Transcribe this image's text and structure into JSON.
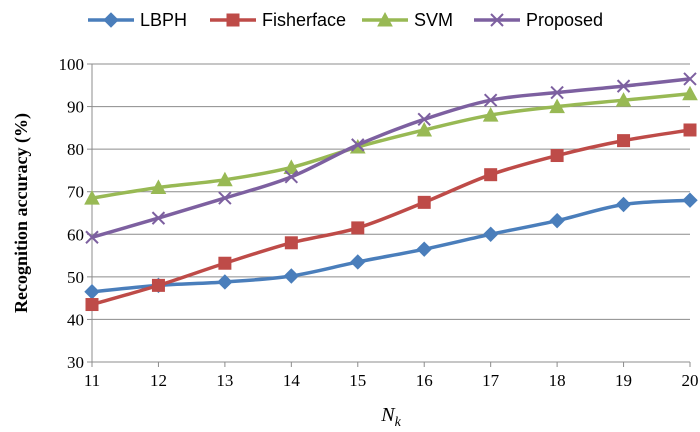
{
  "chart_data": {
    "type": "line",
    "xlabel_main": "N",
    "xlabel_sub": "k",
    "ylabel": "Recognition  accuracy  (%)",
    "x": [
      11,
      12,
      13,
      14,
      15,
      16,
      17,
      18,
      19,
      20
    ],
    "xlim": [
      11,
      20
    ],
    "ylim": [
      30,
      100
    ],
    "yticks": [
      30,
      40,
      50,
      60,
      70,
      80,
      90,
      100
    ],
    "grid": "horizontal",
    "legend_position": "top",
    "series": [
      {
        "name": "LBPH",
        "color": "#4a7ebb",
        "marker": "diamond",
        "values": [
          46.5,
          48.0,
          48.8,
          50.2,
          53.5,
          56.5,
          60.0,
          63.2,
          67.0,
          68.0
        ]
      },
      {
        "name": "Fisherface",
        "color": "#be4b48",
        "marker": "square",
        "values": [
          43.5,
          48.0,
          53.2,
          58.0,
          61.5,
          67.5,
          74.0,
          78.5,
          82.0,
          84.5
        ]
      },
      {
        "name": "SVM",
        "color": "#98b954",
        "marker": "triangle",
        "values": [
          68.5,
          71.0,
          72.8,
          75.7,
          80.5,
          84.5,
          88.0,
          90.0,
          91.5,
          93.0
        ]
      },
      {
        "name": "Proposed",
        "color": "#7d60a0",
        "marker": "x",
        "values": [
          59.3,
          63.8,
          68.5,
          73.5,
          81.0,
          87.0,
          91.5,
          93.3,
          94.8,
          96.5
        ]
      }
    ]
  }
}
